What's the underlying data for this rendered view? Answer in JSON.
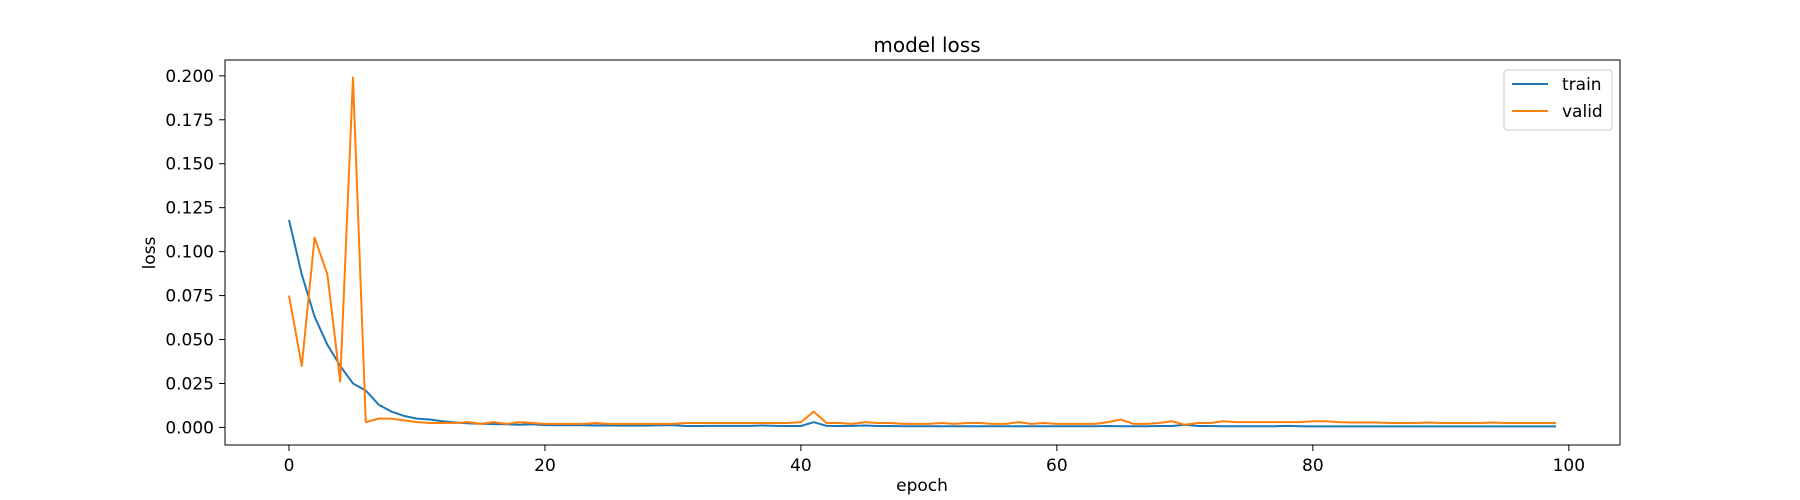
{
  "chart_data": {
    "type": "line",
    "title": "model loss",
    "xlabel": "epoch",
    "ylabel": "loss",
    "xlim": [
      -5,
      104
    ],
    "ylim": [
      -0.01,
      0.209
    ],
    "xticks": [
      0,
      20,
      40,
      60,
      80,
      100
    ],
    "yticks": [
      0.0,
      0.025,
      0.05,
      0.075,
      0.1,
      0.125,
      0.15,
      0.175,
      0.2
    ],
    "xtick_labels": [
      "0",
      "20",
      "40",
      "60",
      "80",
      "100"
    ],
    "ytick_labels": [
      "0.000",
      "0.025",
      "0.050",
      "0.075",
      "0.100",
      "0.125",
      "0.150",
      "0.175",
      "0.200"
    ],
    "grid": false,
    "legend_position": "top-right",
    "series": [
      {
        "name": "train",
        "color": "#1f77b4",
        "values": [
          0.118,
          0.087,
          0.063,
          0.047,
          0.035,
          0.025,
          0.021,
          0.013,
          0.009,
          0.0065,
          0.005,
          0.0045,
          0.0035,
          0.0028,
          0.0023,
          0.0021,
          0.0019,
          0.0018,
          0.0015,
          0.0018,
          0.0013,
          0.0012,
          0.0012,
          0.0012,
          0.0011,
          0.0011,
          0.001,
          0.001,
          0.001,
          0.0012,
          0.0012,
          0.0008,
          0.0008,
          0.0009,
          0.0009,
          0.0009,
          0.0009,
          0.0011,
          0.0009,
          0.0008,
          0.0008,
          0.003,
          0.0009,
          0.0008,
          0.0009,
          0.0011,
          0.0008,
          0.0008,
          0.0007,
          0.0007,
          0.0007,
          0.0007,
          0.0007,
          0.0007,
          0.0007,
          0.0007,
          0.0007,
          0.0007,
          0.0007,
          0.0007,
          0.0007,
          0.0007,
          0.0007,
          0.0007,
          0.0008,
          0.0007,
          0.0007,
          0.0007,
          0.0008,
          0.0008,
          0.0015,
          0.0008,
          0.0008,
          0.0007,
          0.0007,
          0.0007,
          0.0007,
          0.0007,
          0.0009,
          0.0007,
          0.0006,
          0.0006,
          0.0006,
          0.0006,
          0.0006,
          0.0006,
          0.0006,
          0.0006,
          0.0006,
          0.0006,
          0.0006,
          0.0006,
          0.0006,
          0.0006,
          0.0006,
          0.0006,
          0.0006,
          0.0006,
          0.0006,
          0.0006
        ]
      },
      {
        "name": "valid",
        "color": "#ff7f0e",
        "values": [
          0.075,
          0.035,
          0.108,
          0.087,
          0.026,
          0.199,
          0.003,
          0.005,
          0.005,
          0.004,
          0.003,
          0.0025,
          0.0025,
          0.0025,
          0.003,
          0.002,
          0.003,
          0.002,
          0.003,
          0.0025,
          0.002,
          0.002,
          0.002,
          0.002,
          0.0025,
          0.002,
          0.002,
          0.002,
          0.002,
          0.002,
          0.002,
          0.0025,
          0.0025,
          0.0025,
          0.0025,
          0.0025,
          0.0025,
          0.0025,
          0.0025,
          0.0025,
          0.003,
          0.009,
          0.0025,
          0.0025,
          0.002,
          0.003,
          0.0025,
          0.0025,
          0.002,
          0.002,
          0.002,
          0.0025,
          0.002,
          0.0025,
          0.0025,
          0.002,
          0.002,
          0.003,
          0.002,
          0.0025,
          0.002,
          0.002,
          0.002,
          0.002,
          0.003,
          0.0045,
          0.002,
          0.002,
          0.0025,
          0.0035,
          0.0015,
          0.0025,
          0.0025,
          0.0035,
          0.003,
          0.003,
          0.003,
          0.003,
          0.003,
          0.003,
          0.0035,
          0.0035,
          0.003,
          0.0028,
          0.0028,
          0.0028,
          0.0025,
          0.0025,
          0.0025,
          0.0028,
          0.0025,
          0.0025,
          0.0025,
          0.0025,
          0.0028,
          0.0025,
          0.0025,
          0.0025,
          0.0025,
          0.0025
        ]
      }
    ]
  }
}
